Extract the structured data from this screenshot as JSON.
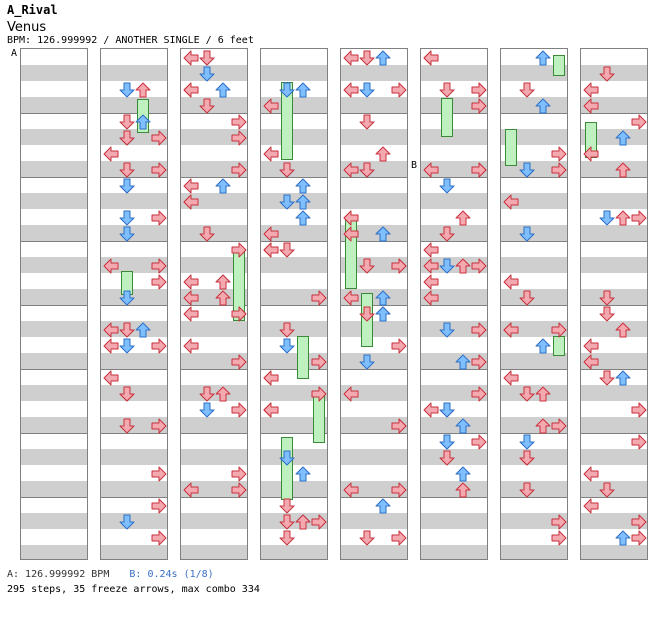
{
  "header": {
    "title": "A_Rival",
    "song": "Venus",
    "info": "BPM: 126.999992 / ANOTHER SINGLE / 6 feet"
  },
  "markers": {
    "a": "A",
    "b": "B"
  },
  "footer": {
    "bpm": "A: 126.999992 BPM",
    "stop": "B: 0.24s (1/8)",
    "stats": "295 steps, 35 freeze arrows, max combo 334"
  },
  "colors": {
    "left_right_arrow": "#f4a9b0",
    "arrow_outline_red": "#c8323c",
    "down_up_blue": "#7fbfff",
    "arrow_outline_blue": "#2b6fc7",
    "freeze": "#bff0bf",
    "stripe": "#cfcfcf"
  },
  "chart_data": {
    "type": "table",
    "description_lanes": [
      "left",
      "down",
      "up",
      "right"
    ],
    "columns": 8,
    "measures_per_column": 8
  }
}
